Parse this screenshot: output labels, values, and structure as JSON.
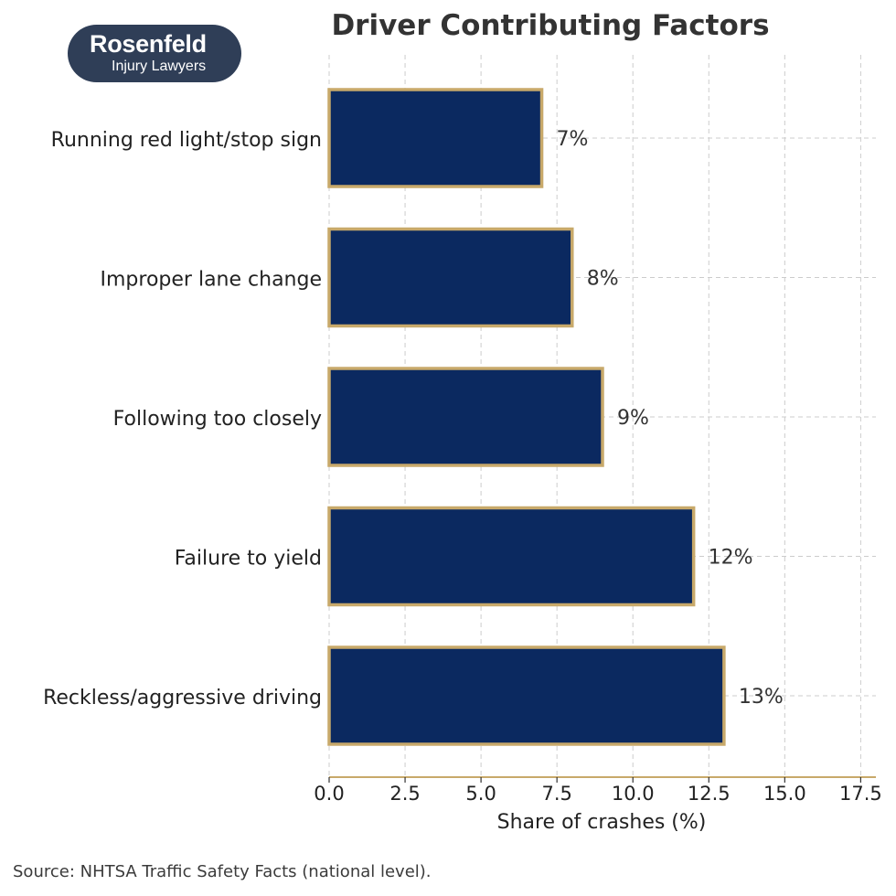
{
  "logo": {
    "name": "Rosenfeld",
    "subtitle": "Injury Lawyers"
  },
  "source_note": "Source: NHTSA Traffic Safety Facts (national level).",
  "colors": {
    "bar_fill": "#0b2960",
    "bar_outline": "#c8a96a",
    "axis_line": "#c8a96a",
    "grid": "#cccccc",
    "text": "#222222"
  },
  "chart_data": {
    "type": "bar",
    "orientation": "horizontal",
    "title": "Driver Contributing Factors",
    "xlabel": "Share of crashes (%)",
    "ylabel": "",
    "xlim": [
      0,
      18
    ],
    "xticks": [
      0,
      2.5,
      5,
      7.5,
      10,
      12.5,
      15,
      17.5
    ],
    "xtick_labels": [
      "0.0",
      "2.5",
      "5.0",
      "7.5",
      "10.0",
      "12.5",
      "15.0",
      "17.5"
    ],
    "grid": true,
    "categories": [
      "Running red light/stop sign",
      "Improper lane change",
      "Following too closely",
      "Failure to yield",
      "Reckless/aggressive driving"
    ],
    "values": [
      7,
      8,
      9,
      12,
      13
    ],
    "data_labels": [
      "7%",
      "8%",
      "9%",
      "12%",
      "13%"
    ]
  }
}
